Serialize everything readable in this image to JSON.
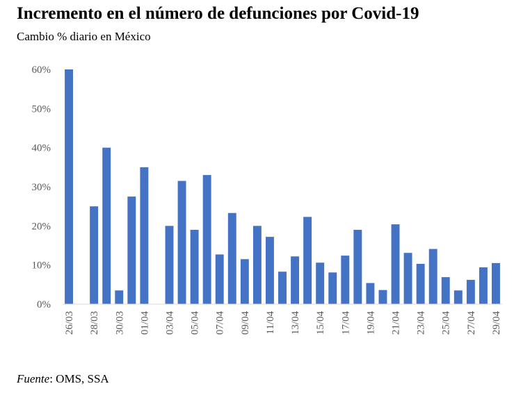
{
  "header": {
    "title": "Incremento en el número de defunciones por Covid-19",
    "subtitle": "Cambio % diario en México"
  },
  "source": {
    "label": "Fuente",
    "text": ": OMS, SSA"
  },
  "colors": {
    "bar": "#4472C4",
    "axis": "#D9D9D9",
    "tick": "#595959"
  },
  "chart_data": {
    "type": "bar",
    "title": "Incremento en el número de defunciones por Covid-19",
    "subtitle": "Cambio % diario en México",
    "xlabel": "",
    "ylabel": "",
    "ylim": [
      0,
      60
    ],
    "yticks": [
      "0%",
      "10%",
      "20%",
      "30%",
      "40%",
      "50%",
      "60%"
    ],
    "grid": false,
    "categories": [
      "26/03",
      "27/03",
      "28/03",
      "29/03",
      "30/03",
      "31/03",
      "01/04",
      "02/04",
      "03/04",
      "04/04",
      "05/04",
      "06/04",
      "07/04",
      "08/04",
      "09/04",
      "10/04",
      "11/04",
      "12/04",
      "13/04",
      "14/04",
      "15/04",
      "16/04",
      "17/04",
      "18/04",
      "19/04",
      "20/04",
      "21/04",
      "22/04",
      "23/04",
      "24/04",
      "25/04",
      "26/04",
      "27/04",
      "28/04",
      "29/04"
    ],
    "xtick_labels": [
      "26/03",
      "28/03",
      "30/03",
      "01/04",
      "03/04",
      "05/04",
      "07/04",
      "09/04",
      "11/04",
      "13/04",
      "15/04",
      "17/04",
      "19/04",
      "21/04",
      "23/04",
      "25/04",
      "27/04",
      "29/04"
    ],
    "values": [
      60,
      0,
      25,
      40,
      3.5,
      27.5,
      35,
      0,
      20,
      31.5,
      19,
      33,
      12.7,
      23.3,
      11.5,
      20,
      17.2,
      8.3,
      12.2,
      22.3,
      10.6,
      8.1,
      12.4,
      19,
      5.4,
      3.6,
      20.4,
      13.1,
      10.3,
      14.1,
      6.9,
      3.5,
      6.2,
      9.4,
      10.5
    ]
  }
}
